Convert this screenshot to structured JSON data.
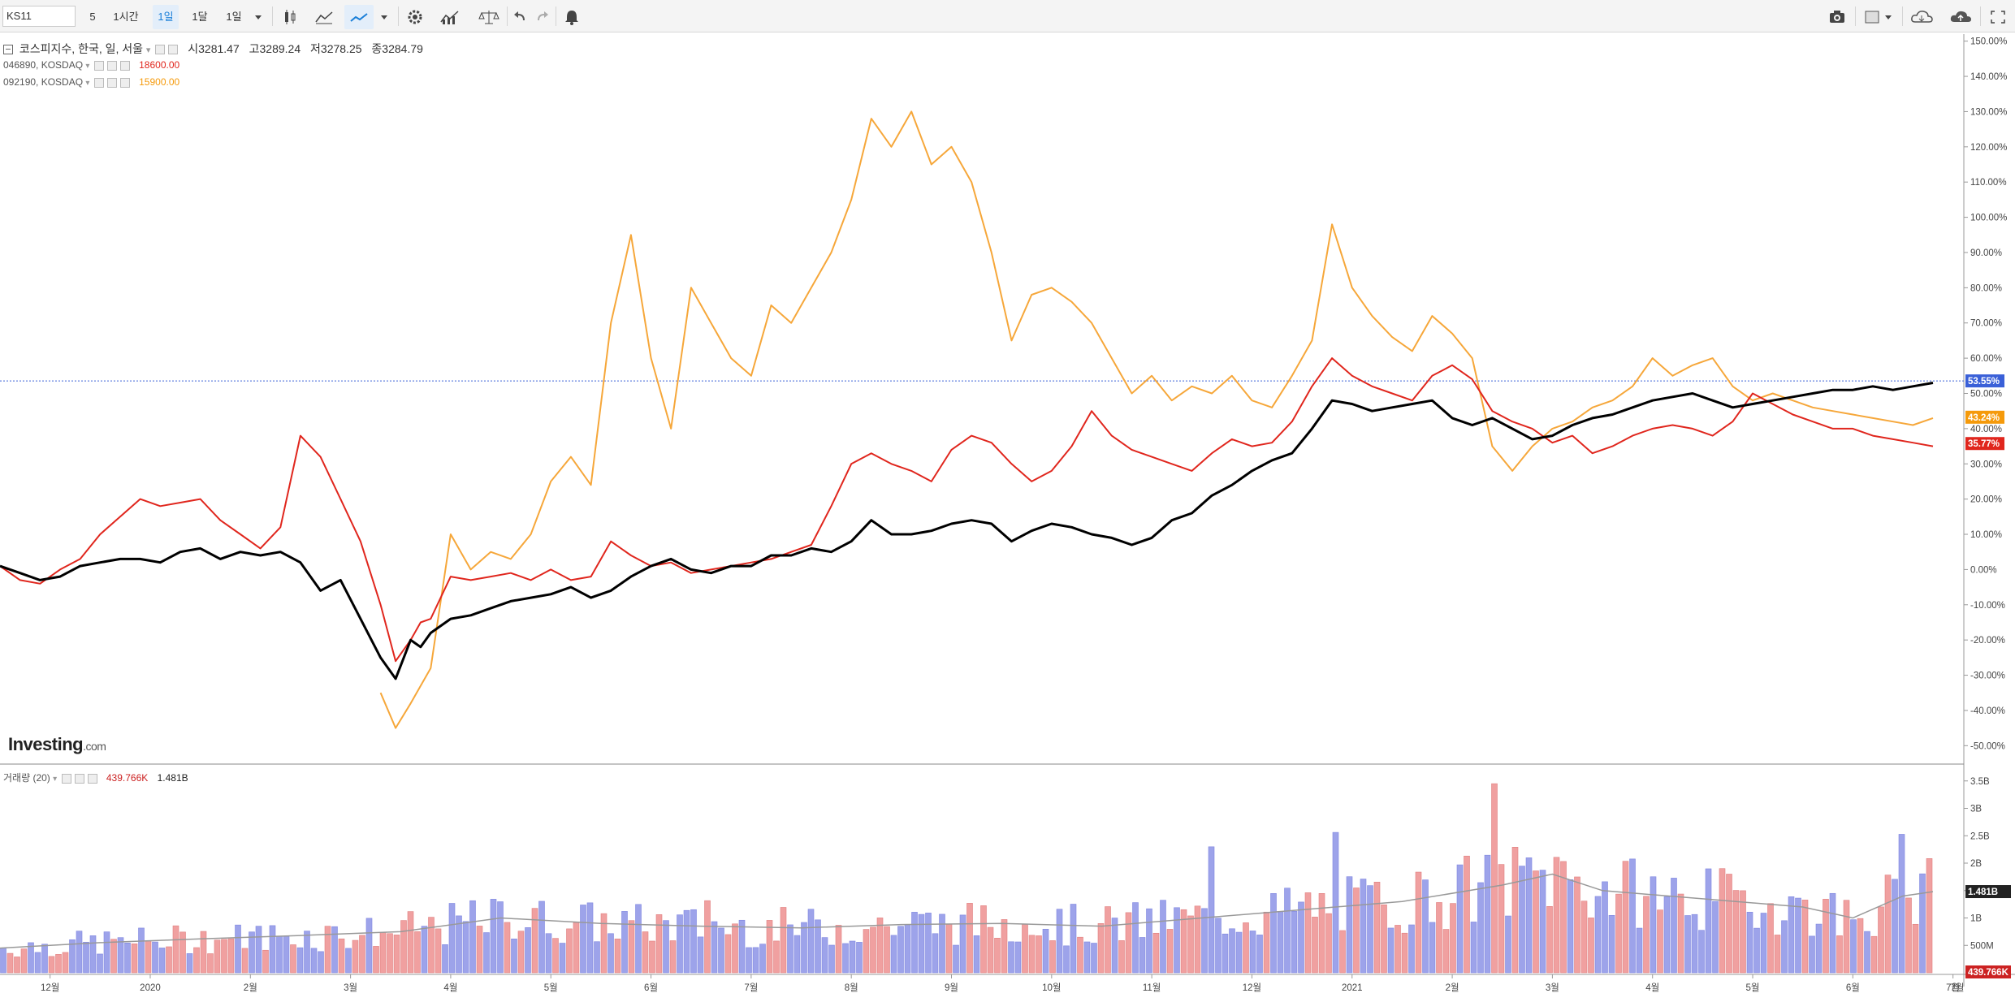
{
  "toolbar": {
    "symbol": "KS11",
    "items": [
      {
        "label": "5",
        "selected": false
      },
      {
        "label": "1시간",
        "selected": false
      },
      {
        "label": "1일",
        "selected": true
      },
      {
        "label": "1달",
        "selected": false
      },
      {
        "label": "1일",
        "selected": false
      }
    ],
    "icons": [
      "dropdown-icon",
      "candlestick-icon",
      "mountain-chart-icon",
      "line-chart-icon",
      "dropdown-icon",
      "gear-icon",
      "indicators-icon",
      "balance-icon",
      "undo-icon",
      "redo-icon",
      "alert-bell-icon"
    ],
    "right_icons": [
      "camera-icon",
      "layout-icon",
      "cloud-download-icon",
      "cloud-upload-icon",
      "fullscreen-icon"
    ]
  },
  "legend": {
    "main": {
      "name": "코스피지수, 한국, 일, 서울",
      "open_label": "시",
      "open": "3281.47",
      "high_label": "고",
      "high": "3289.24",
      "low_label": "저",
      "low": "3278.25",
      "close_label": "종",
      "close": "3284.79"
    },
    "compare": [
      {
        "name": "046890, KOSDAQ",
        "value": "18600.00",
        "color": "#e0261d"
      },
      {
        "name": "092190, KOSDAQ",
        "value": "15900.00",
        "color": "#f59a0b"
      }
    ],
    "volume": {
      "name": "거래량 (20)",
      "value1": "439.766K",
      "value2": "1.481B"
    }
  },
  "brand": {
    "name": "Investing",
    "suffix": ".com"
  },
  "chart_data": [
    {
      "type": "line",
      "y_unit": "%",
      "ylim": [
        -55,
        152
      ],
      "y_ticks": [
        "150.00%",
        "140.00%",
        "130.00%",
        "120.00%",
        "110.00%",
        "100.00%",
        "90.00%",
        "80.00%",
        "70.00%",
        "60.00%",
        "50.00%",
        "40.00%",
        "30.00%",
        "20.00%",
        "10.00%",
        "0.00%",
        "-10.00%",
        "-20.00%",
        "-30.00%",
        "-40.00%",
        "-50.00%"
      ],
      "x_ticks": [
        "12월",
        "2020",
        "2월",
        "3월",
        "4월",
        "5월",
        "6월",
        "7월",
        "8월",
        "9월",
        "10월",
        "11월",
        "12월",
        "2021",
        "2월",
        "3월",
        "4월",
        "5월",
        "6월",
        "7월"
      ],
      "x_ticks_index": [
        0.5,
        1.5,
        2.5,
        3.5,
        4.5,
        5.5,
        6.5,
        7.5,
        8.5,
        9.5,
        10.5,
        11.5,
        12.5,
        13.5,
        14.5,
        15.5,
        16.5,
        17.5,
        18.5,
        19.5
      ],
      "x_range_index": [
        0,
        19.3
      ],
      "series": [
        {
          "color": "#000000",
          "width": 3,
          "x": [
            0,
            0.2,
            0.4,
            0.6,
            0.8,
            1,
            1.2,
            1.4,
            1.6,
            1.8,
            2,
            2.2,
            2.4,
            2.6,
            2.8,
            3,
            3.2,
            3.4,
            3.6,
            3.8,
            3.95,
            4.1,
            4.2,
            4.3,
            4.5,
            4.7,
            4.9,
            5.1,
            5.3,
            5.5,
            5.7,
            5.9,
            6.1,
            6.3,
            6.5,
            6.7,
            6.9,
            7.1,
            7.3,
            7.5,
            7.7,
            7.9,
            8.1,
            8.3,
            8.5,
            8.7,
            8.9,
            9.1,
            9.3,
            9.5,
            9.7,
            9.9,
            10.1,
            10.3,
            10.5,
            10.7,
            10.9,
            11.1,
            11.3,
            11.5,
            11.7,
            11.9,
            12.1,
            12.3,
            12.5,
            12.7,
            12.9,
            13.1,
            13.3,
            13.5,
            13.7,
            13.9,
            14.1,
            14.3,
            14.5,
            14.7,
            14.9,
            15.1,
            15.3,
            15.5,
            15.7,
            15.9,
            16.1,
            16.3,
            16.5,
            16.7,
            16.9,
            17.1,
            17.3,
            17.5,
            17.7,
            17.9,
            18.1,
            18.3,
            18.5,
            18.7,
            18.9,
            19.1,
            19.3
          ],
          "values": [
            1,
            -1,
            -3,
            -2,
            1,
            2,
            3,
            3,
            2,
            5,
            6,
            3,
            5,
            4,
            5,
            2,
            -6,
            -3,
            -14,
            -25,
            -31,
            -20,
            -22,
            -18,
            -14,
            -13,
            -11,
            -9,
            -8,
            -7,
            -5,
            -8,
            -6,
            -2,
            1,
            3,
            0,
            -1,
            1,
            1,
            4,
            4,
            6,
            5,
            8,
            14,
            10,
            10,
            11,
            13,
            14,
            13,
            8,
            11,
            13,
            12,
            10,
            9,
            7,
            9,
            14,
            16,
            21,
            24,
            28,
            31,
            33,
            40,
            48,
            47,
            45,
            46,
            47,
            48,
            43,
            41,
            43,
            40,
            37,
            38,
            41,
            43,
            44,
            46,
            48,
            49,
            50,
            48,
            46,
            47,
            48,
            49,
            50,
            51,
            51,
            52,
            51,
            52,
            53
          ]
        },
        {
          "color": "#e0261d",
          "width": 2,
          "x": [
            0,
            0.2,
            0.4,
            0.6,
            0.8,
            1,
            1.2,
            1.4,
            1.6,
            1.8,
            2,
            2.2,
            2.4,
            2.6,
            2.8,
            3,
            3.2,
            3.4,
            3.6,
            3.8,
            3.95,
            4.1,
            4.2,
            4.3,
            4.5,
            4.7,
            4.9,
            5.1,
            5.3,
            5.5,
            5.7,
            5.9,
            6.1,
            6.3,
            6.5,
            6.7,
            6.9,
            7.1,
            7.3,
            7.5,
            7.7,
            7.9,
            8.1,
            8.3,
            8.5,
            8.7,
            8.9,
            9.1,
            9.3,
            9.5,
            9.7,
            9.9,
            10.1,
            10.3,
            10.5,
            10.7,
            10.9,
            11.1,
            11.3,
            11.5,
            11.7,
            11.9,
            12.1,
            12.3,
            12.5,
            12.7,
            12.9,
            13.1,
            13.3,
            13.5,
            13.7,
            13.9,
            14.1,
            14.3,
            14.5,
            14.7,
            14.9,
            15.1,
            15.3,
            15.5,
            15.7,
            15.9,
            16.1,
            16.3,
            16.5,
            16.7,
            16.9,
            17.1,
            17.3,
            17.5,
            17.7,
            17.9,
            18.1,
            18.3,
            18.5,
            18.7,
            18.9,
            19.1,
            19.3
          ],
          "values": [
            1,
            -3,
            -4,
            0,
            3,
            10,
            15,
            20,
            18,
            19,
            20,
            14,
            10,
            6,
            12,
            38,
            32,
            20,
            8,
            -10,
            -26,
            -20,
            -15,
            -14,
            -2,
            -3,
            -2,
            -1,
            -3,
            0,
            -3,
            -2,
            8,
            4,
            1,
            2,
            -1,
            0,
            1,
            2,
            3,
            5,
            7,
            18,
            30,
            33,
            30,
            28,
            25,
            34,
            38,
            36,
            30,
            25,
            28,
            35,
            45,
            38,
            34,
            32,
            30,
            28,
            33,
            37,
            35,
            36,
            42,
            52,
            60,
            55,
            52,
            50,
            48,
            55,
            58,
            54,
            45,
            42,
            40,
            36,
            38,
            33,
            35,
            38,
            40,
            41,
            40,
            38,
            42,
            50,
            47,
            44,
            42,
            40,
            40,
            38,
            37,
            36,
            35
          ]
        },
        {
          "color": "#f6a73a",
          "width": 2,
          "x": [
            0,
            0.2,
            0.4,
            0.6,
            0.8,
            1,
            1.2,
            1.4,
            1.6,
            1.8,
            2,
            2.2,
            2.4,
            2.6,
            2.8,
            3,
            3.2,
            3.4,
            3.6,
            3.8,
            3.95,
            4.1,
            4.2,
            4.3,
            4.5,
            4.7,
            4.9,
            5.1,
            5.3,
            5.5,
            5.7,
            5.9,
            6.1,
            6.3,
            6.5,
            6.7,
            6.9,
            7.1,
            7.3,
            7.5,
            7.7,
            7.9,
            8.1,
            8.3,
            8.5,
            8.7,
            8.9,
            9.1,
            9.3,
            9.5,
            9.7,
            9.9,
            10.1,
            10.3,
            10.5,
            10.7,
            10.9,
            11.1,
            11.3,
            11.5,
            11.7,
            11.9,
            12.1,
            12.3,
            12.5,
            12.7,
            12.9,
            13.1,
            13.3,
            13.5,
            13.7,
            13.9,
            14.1,
            14.3,
            14.5,
            14.7,
            14.9,
            15.1,
            15.3,
            15.5,
            15.7,
            15.9,
            16.1,
            16.3,
            16.5,
            16.7,
            16.9,
            17.1,
            17.3,
            17.5,
            17.7,
            17.9,
            18.1,
            18.3,
            18.5,
            18.7,
            18.9,
            19.1,
            19.3
          ],
          "values": [
            null,
            null,
            null,
            null,
            null,
            null,
            null,
            null,
            null,
            null,
            null,
            null,
            null,
            null,
            null,
            null,
            null,
            null,
            null,
            -35,
            -45,
            -38,
            -33,
            -28,
            10,
            0,
            5,
            3,
            10,
            25,
            32,
            24,
            70,
            95,
            60,
            40,
            80,
            70,
            60,
            55,
            75,
            70,
            80,
            90,
            105,
            128,
            120,
            130,
            115,
            120,
            110,
            90,
            65,
            78,
            80,
            76,
            70,
            60,
            50,
            55,
            48,
            52,
            50,
            55,
            48,
            46,
            55,
            65,
            98,
            80,
            72,
            66,
            62,
            72,
            67,
            60,
            35,
            28,
            35,
            40,
            42,
            46,
            48,
            52,
            60,
            55,
            58,
            60,
            52,
            48,
            50,
            48,
            46,
            45,
            44,
            43,
            42,
            41,
            43
          ]
        }
      ],
      "reference_line": {
        "value": 53.55,
        "color": "#3a60d8"
      },
      "price_tags": [
        {
          "value": 53.55,
          "label": "53.55%",
          "color": "#3a60d8"
        },
        {
          "value": 43.24,
          "label": "43.24%",
          "color": "#f59a0b"
        },
        {
          "value": 35.77,
          "label": "35.77%",
          "color": "#e0261d"
        }
      ]
    },
    {
      "type": "bar",
      "title": "거래량 (20)",
      "ylim": [
        0,
        3.6
      ],
      "y_unit": "B",
      "y_ticks": [
        "3.5B",
        "3B",
        "2.5B",
        "2B",
        "1.5B",
        "1B",
        "500M"
      ],
      "y_tick_values": [
        3.5,
        3.0,
        2.5,
        2.0,
        1.5,
        1.0,
        0.5
      ],
      "x_range_index": [
        0,
        19.3
      ],
      "up_color": "#f0a0a0",
      "down_color": "#9da3ea",
      "ma_color": "#999999",
      "ma_x": [
        0,
        1,
        2,
        3,
        4,
        5,
        6,
        7,
        8,
        9,
        10,
        11,
        12,
        13,
        14,
        15,
        15.5,
        16,
        17,
        18,
        18.5,
        19,
        19.3
      ],
      "ma_values": [
        0.45,
        0.55,
        0.62,
        0.68,
        0.75,
        1.0,
        0.9,
        0.85,
        0.82,
        0.88,
        0.9,
        0.85,
        1.0,
        1.15,
        1.3,
        1.6,
        1.8,
        1.5,
        1.35,
        1.2,
        1.0,
        1.4,
        1.48
      ],
      "last_values": [
        {
          "value": 1.481,
          "label": "1.481B",
          "color": "#222222"
        },
        {
          "value": 0.0,
          "label": "439.766K",
          "color": "#cc2222"
        }
      ]
    }
  ]
}
